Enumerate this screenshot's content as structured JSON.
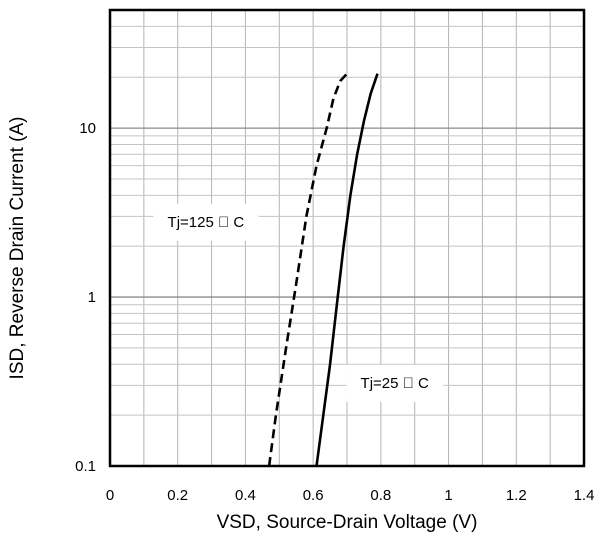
{
  "chart_data": {
    "type": "line",
    "title": "",
    "xlabel": "VSD, Source-Drain Voltage (V)",
    "ylabel": "ISD, Reverse Drain Current (A)",
    "xlim": [
      0,
      1.4
    ],
    "ylim": [
      0.1,
      50
    ],
    "yscale": "log",
    "grid": true,
    "x_ticks": [
      "0",
      "0.2",
      "0.4",
      "0.6",
      "0.8",
      "1",
      "1.2",
      "1.4"
    ],
    "y_ticks": [
      "0.1",
      "1",
      "10"
    ],
    "series": [
      {
        "name": "",
        "style": "solid",
        "color": "#000000",
        "points": [
          [
            0.61,
            0.1
          ],
          [
            0.63,
            0.2
          ],
          [
            0.65,
            0.4
          ],
          [
            0.67,
            0.9
          ],
          [
            0.69,
            2.0
          ],
          [
            0.71,
            4.0
          ],
          [
            0.73,
            7.0
          ],
          [
            0.75,
            11
          ],
          [
            0.77,
            16
          ],
          [
            0.79,
            21
          ]
        ]
      },
      {
        "name": "",
        "style": "dashed",
        "color": "#000000",
        "points": [
          [
            0.47,
            0.1
          ],
          [
            0.49,
            0.2
          ],
          [
            0.52,
            0.5
          ],
          [
            0.55,
            1.2
          ],
          [
            0.58,
            3.0
          ],
          [
            0.61,
            6.0
          ],
          [
            0.64,
            10
          ],
          [
            0.66,
            15
          ],
          [
            0.68,
            19
          ],
          [
            0.7,
            21
          ]
        ]
      }
    ],
    "annotations": [
      {
        "text": "Tj=125 ゚ C",
        "x": 0.17,
        "y": 2.6
      },
      {
        "text": "Tj=25 ゚ C",
        "x": 0.74,
        "y": 0.29
      }
    ]
  }
}
